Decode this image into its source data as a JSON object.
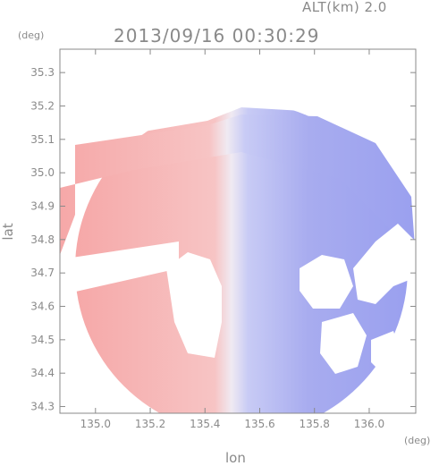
{
  "header": {
    "alt_label": "ALT(km) 2.0",
    "timestamp": "2013/09/16 00:30:29"
  },
  "chart_data": {
    "type": "heatmap",
    "title": "2013/09/16 00:30:29",
    "xlabel": "lon",
    "ylabel": "lat",
    "x_unit": "(deg)",
    "y_unit": "(deg)",
    "xlim": [
      134.87,
      136.17
    ],
    "ylim": [
      34.28,
      35.37
    ],
    "x_ticks": [
      135.0,
      135.2,
      135.4,
      135.6,
      135.8,
      136.0
    ],
    "x_tick_labels": [
      "135.0",
      "135.2",
      "135.4",
      "135.6",
      "135.8",
      "136.0"
    ],
    "y_ticks": [
      34.3,
      34.4,
      34.5,
      34.6,
      34.7,
      34.8,
      34.9,
      35.0,
      35.1,
      35.2,
      35.3
    ],
    "y_tick_labels": [
      "34.3",
      "34.4",
      "34.5",
      "34.6",
      "34.7",
      "34.8",
      "34.9",
      "35.0",
      "35.1",
      "35.2",
      "35.3"
    ],
    "grid": false,
    "colors": {
      "approaching": "#8e92ef",
      "receding": "#f6a3a3",
      "near_zero": "#eef0ff",
      "axis": "#8a8a8a"
    }
  }
}
